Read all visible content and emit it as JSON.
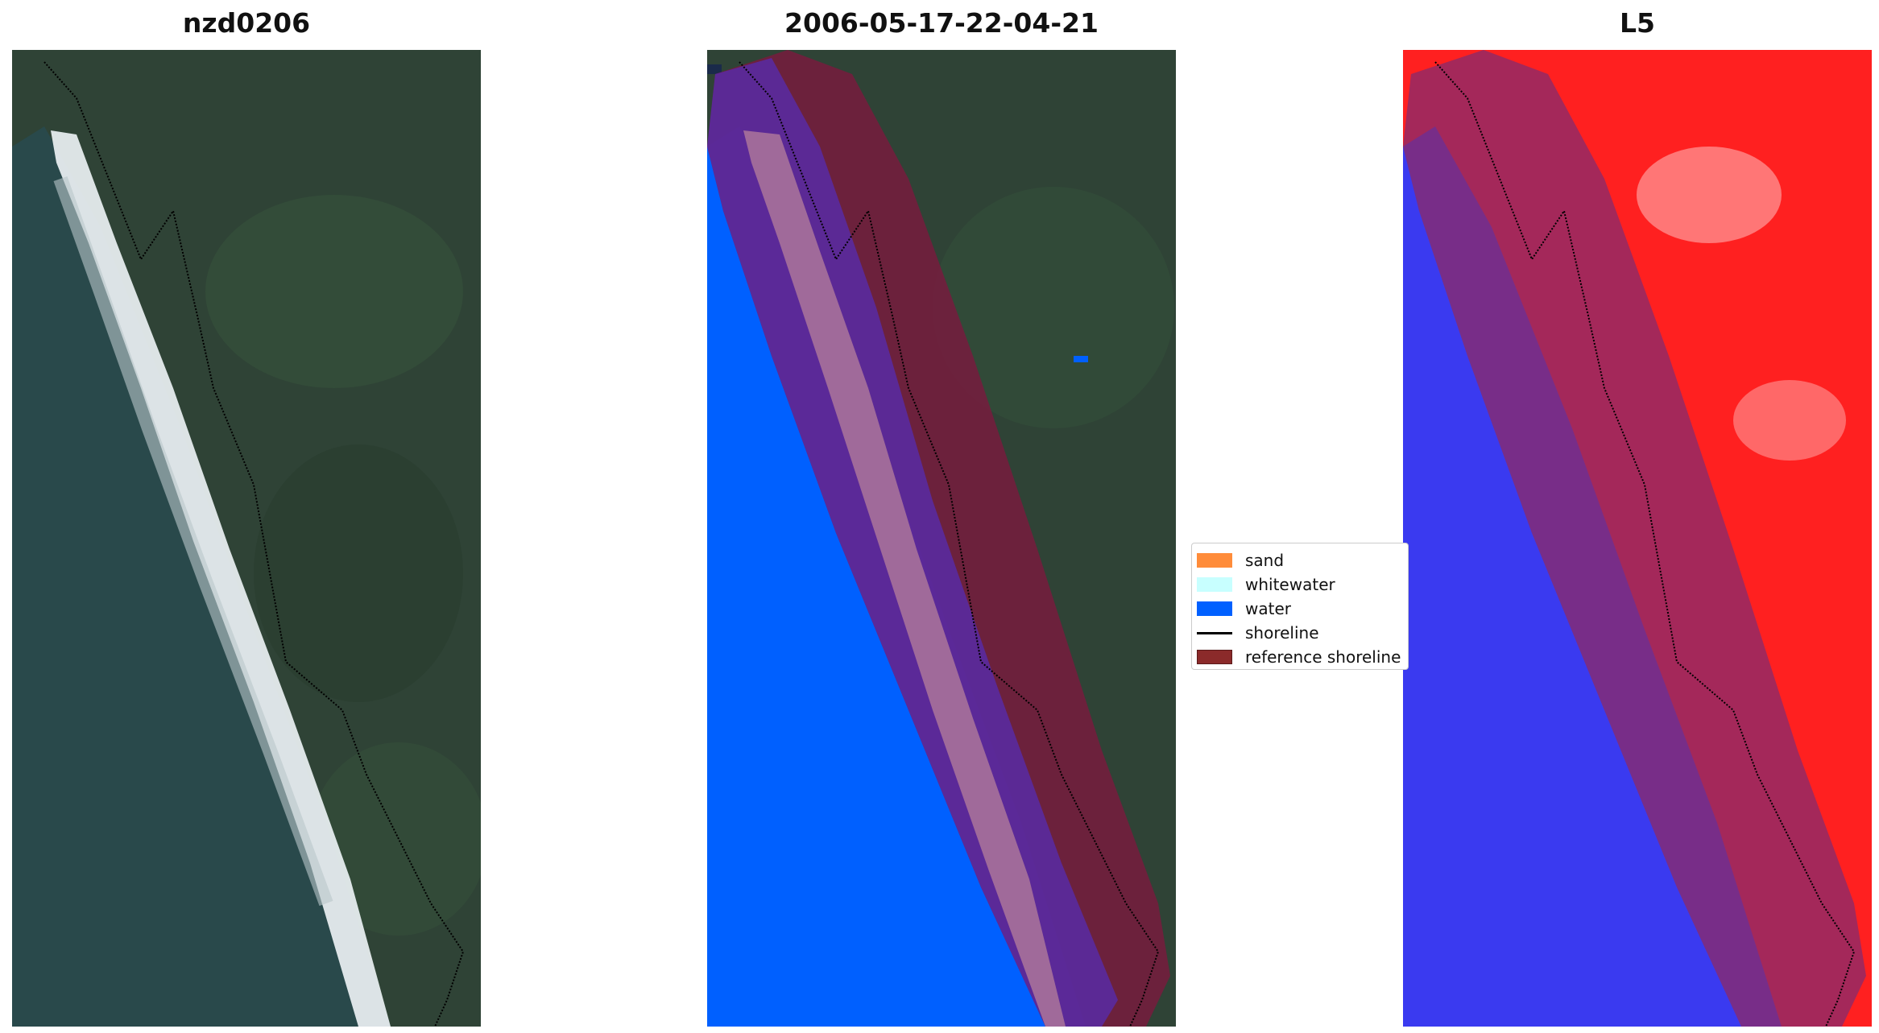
{
  "panels": [
    {
      "title": "nzd0206"
    },
    {
      "title": "2006-05-17-22-04-21"
    },
    {
      "title": "L5"
    }
  ],
  "legend": {
    "items": [
      {
        "label": "sand",
        "color": "#ff8c3a",
        "kind": "patch"
      },
      {
        "label": "whitewater",
        "color": "#c8ffff",
        "kind": "patch"
      },
      {
        "label": "water",
        "color": "#0060ff",
        "kind": "patch"
      },
      {
        "label": "shoreline",
        "color": "#000000",
        "kind": "line"
      },
      {
        "label": "reference shoreline",
        "color": "#8b2a2a",
        "kind": "patch"
      }
    ]
  },
  "colors": {
    "land": "#2f4336",
    "sea": "#2a4a4c",
    "surf": "#e8eef0",
    "water_class": "#0060ff",
    "buffer": "#7a1a3e",
    "whitewater_in_buffer": "#a06a9a",
    "water_in_buffer": "#5a2a9e",
    "index_positive": "#ff2020",
    "index_negative": "#3a3af0"
  }
}
